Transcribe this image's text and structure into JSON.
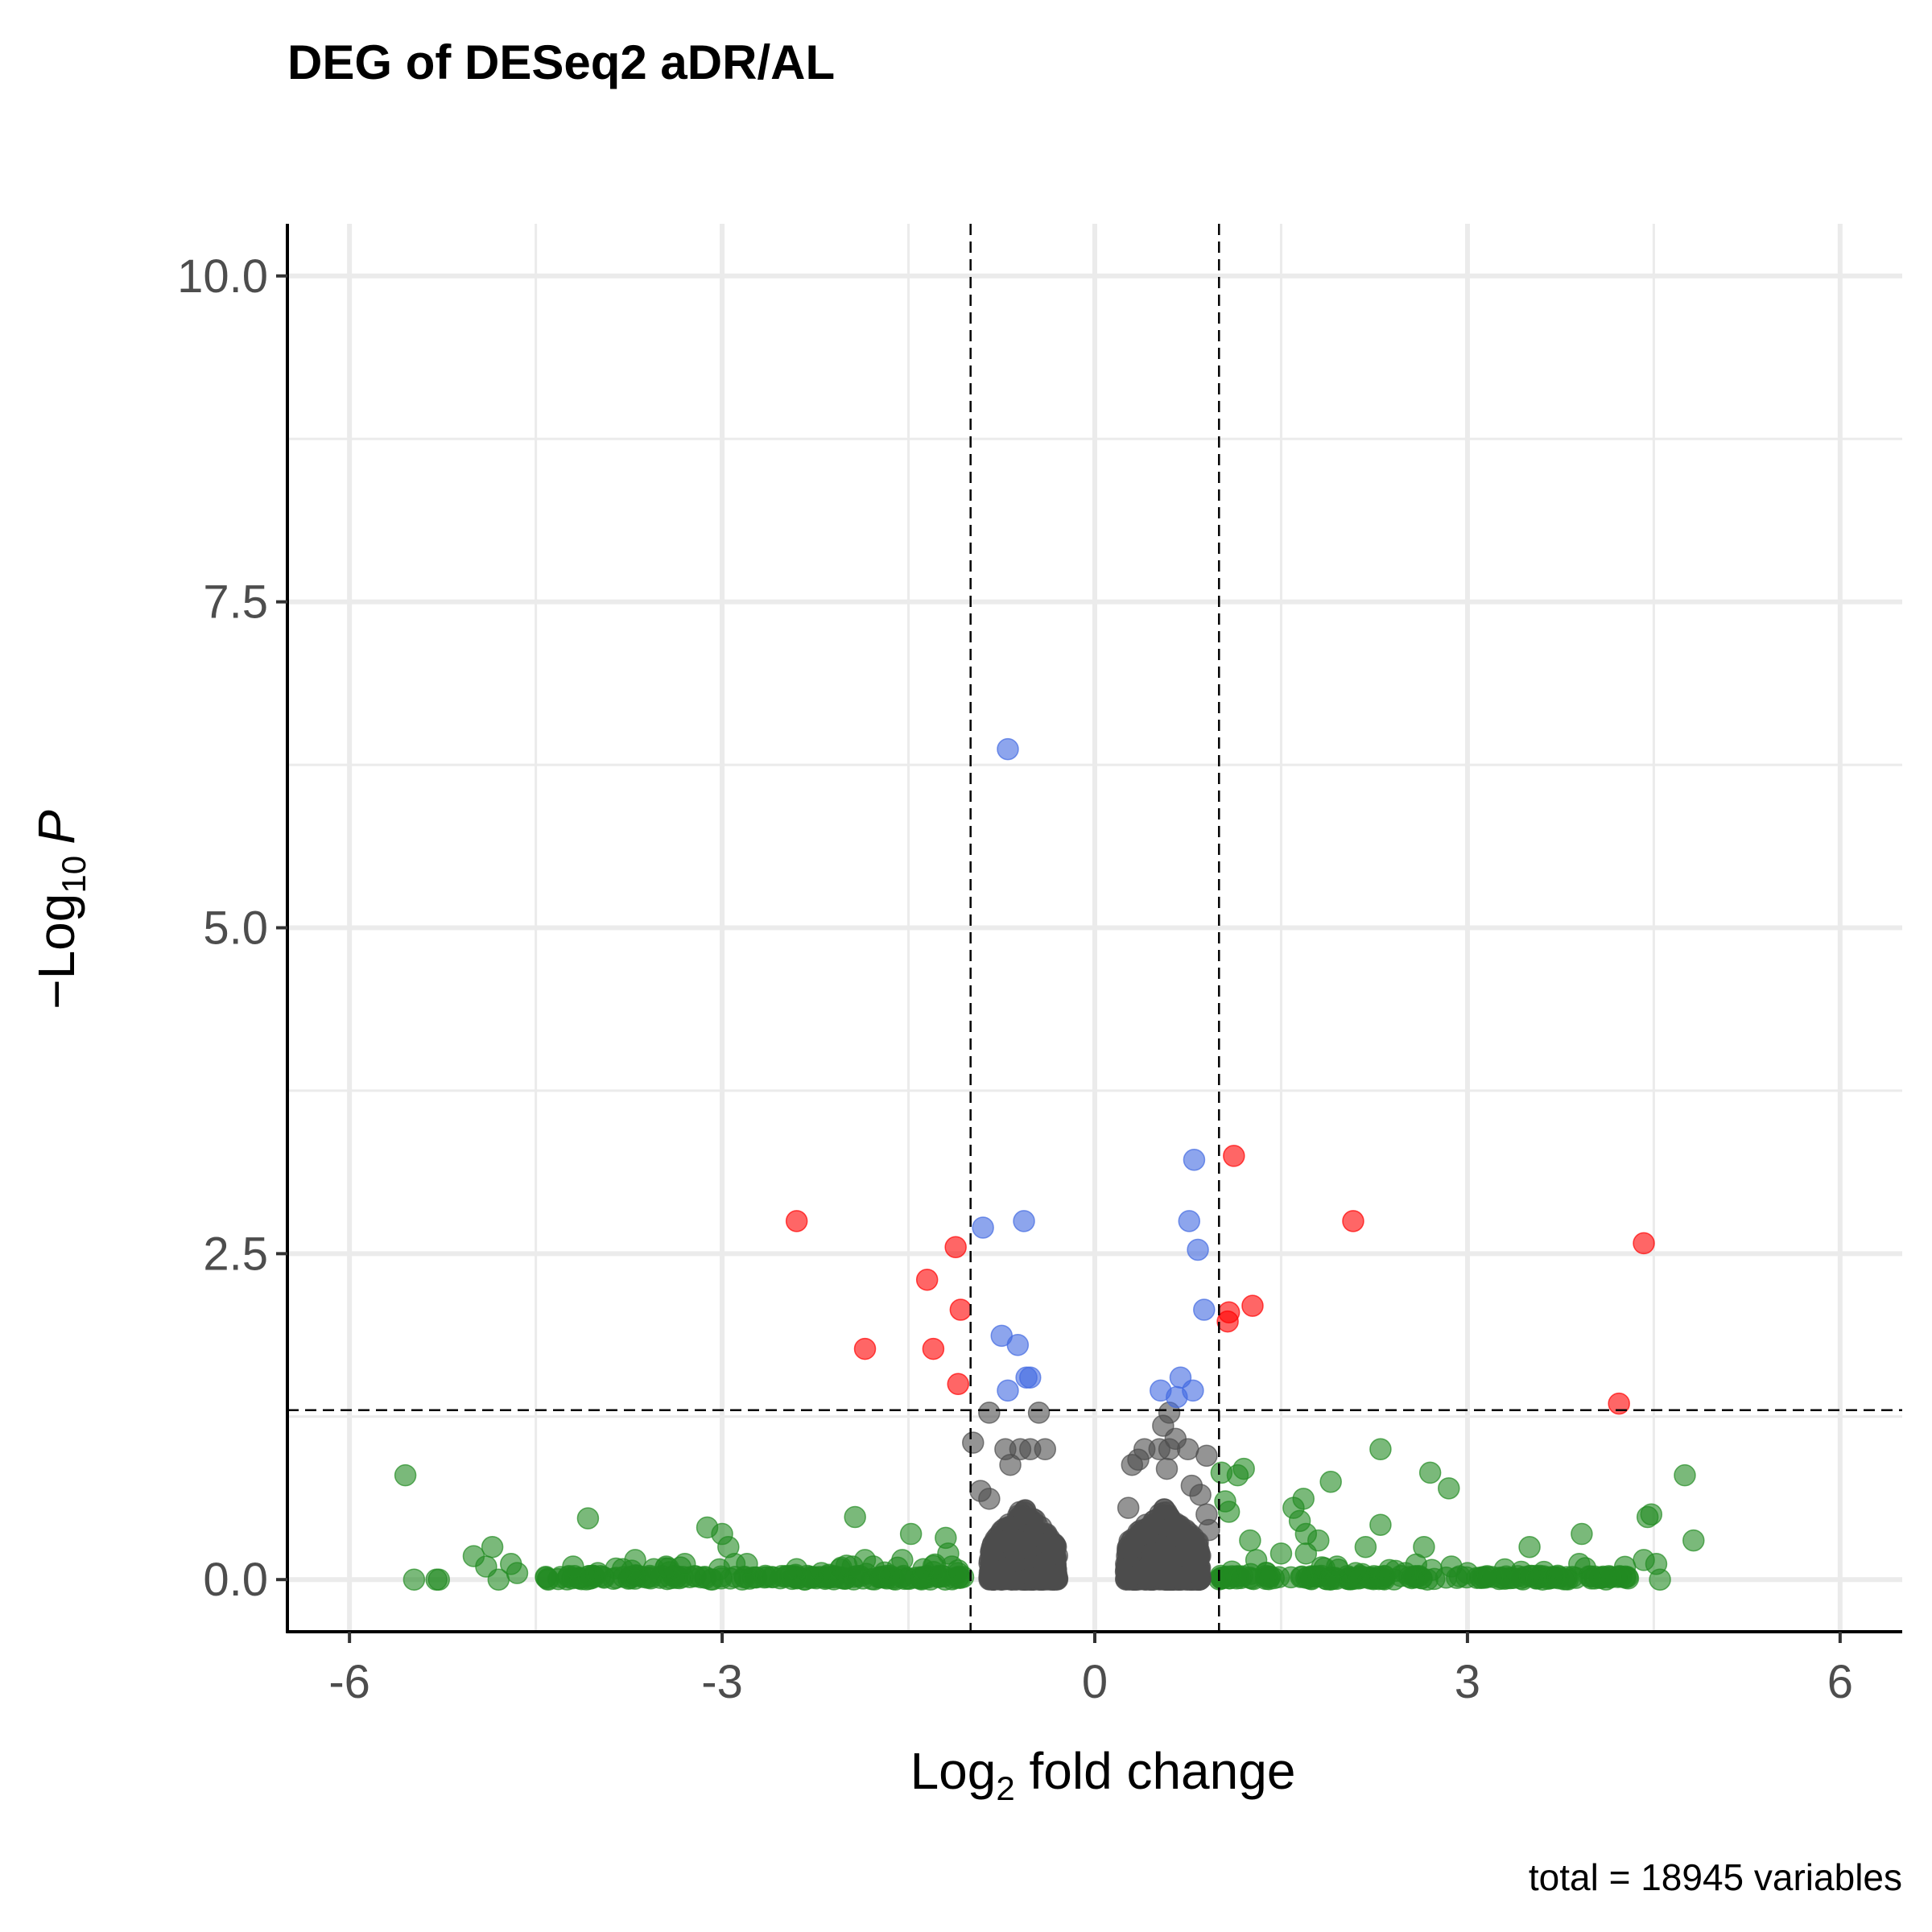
{
  "chart_data": {
    "type": "scatter",
    "title": "DEG of DESeq2 aDR/AL",
    "xlabel": {
      "base": "Log",
      "sub": "2",
      "rest": " fold change"
    },
    "ylabel": {
      "prefix": "−Log",
      "sub": "10",
      "italic": "P"
    },
    "caption": "total = 18945 variables",
    "xlim": [
      -6.5,
      6.5
    ],
    "ylim": [
      -0.4,
      10.4
    ],
    "x_ticks": [
      -6,
      -3,
      0,
      3,
      6
    ],
    "x_tick_labels": [
      "-6",
      "-3",
      "0",
      "3",
      "6"
    ],
    "y_ticks": [
      0,
      2.5,
      5,
      7.5,
      10
    ],
    "y_tick_labels": [
      "0.0",
      "2.5",
      "5.0",
      "7.5",
      "10.0"
    ],
    "grid": true,
    "thresholds": {
      "log2fc": [
        -1,
        1
      ],
      "neg_log10_p": 1.3
    },
    "colors": {
      "ns": "#4d4d4d",
      "log2fc": "#228b22",
      "p": "#4169e1",
      "p_and_log2fc": "#ff0000"
    },
    "series": [
      {
        "key": "p_and_log2fc",
        "color": "#ff0000",
        "points": [
          [
            -2.4,
            2.75
          ],
          [
            -1.12,
            2.55
          ],
          [
            -1.35,
            2.3
          ],
          [
            -1.08,
            2.07
          ],
          [
            -1.85,
            1.77
          ],
          [
            -1.3,
            1.77
          ],
          [
            -1.1,
            1.5
          ],
          [
            1.12,
            3.25
          ],
          [
            1.08,
            2.05
          ],
          [
            1.07,
            1.98
          ],
          [
            1.27,
            2.1
          ],
          [
            2.08,
            2.75
          ],
          [
            4.42,
            2.58
          ],
          [
            4.22,
            1.35
          ]
        ]
      },
      {
        "key": "p",
        "color": "#4169e1",
        "points": [
          [
            -0.7,
            6.37
          ],
          [
            -0.9,
            2.7
          ],
          [
            -0.57,
            2.75
          ],
          [
            -0.75,
            1.87
          ],
          [
            -0.62,
            1.8
          ],
          [
            -0.52,
            1.55
          ],
          [
            -0.55,
            1.55
          ],
          [
            -0.7,
            1.45
          ],
          [
            0.8,
            3.22
          ],
          [
            0.76,
            2.75
          ],
          [
            0.83,
            2.53
          ],
          [
            0.88,
            2.07
          ],
          [
            0.69,
            1.55
          ],
          [
            0.53,
            1.45
          ],
          [
            0.79,
            1.45
          ],
          [
            0.66,
            1.4
          ]
        ]
      },
      {
        "key": "log2fc",
        "color": "#228b22",
        "points": [
          [
            -5.55,
            0.8
          ],
          [
            -5.48,
            0
          ],
          [
            -5.3,
            0
          ],
          [
            -5.28,
            0
          ],
          [
            -5.0,
            0.18
          ],
          [
            -4.85,
            0.25
          ],
          [
            -4.9,
            0.1
          ],
          [
            -4.8,
            0
          ],
          [
            -4.7,
            0.12
          ],
          [
            -4.65,
            0.05
          ],
          [
            -4.4,
            0
          ],
          [
            -4.3,
            0.02
          ],
          [
            -4.2,
            0.1
          ],
          [
            -4.08,
            0.47
          ],
          [
            -4.0,
            0.05
          ],
          [
            -3.8,
            0.08
          ],
          [
            -3.7,
            0.15
          ],
          [
            -3.55,
            0.08
          ],
          [
            -3.45,
            0.1
          ],
          [
            -3.3,
            0.12
          ],
          [
            -3.12,
            0.4
          ],
          [
            -3.0,
            0.35
          ],
          [
            -2.95,
            0.25
          ],
          [
            -2.9,
            0.12
          ],
          [
            -2.8,
            0.12
          ],
          [
            -2.6,
            0.02
          ],
          [
            -2.4,
            0.08
          ],
          [
            -2.2,
            0.05
          ],
          [
            -2.05,
            0.08
          ],
          [
            -1.95,
            0.1
          ],
          [
            -1.93,
            0.48
          ],
          [
            -1.85,
            0.15
          ],
          [
            -1.65,
            0.03
          ],
          [
            -1.55,
            0.15
          ],
          [
            -1.48,
            0.35
          ],
          [
            -1.38,
            0.08
          ],
          [
            -1.2,
            0.32
          ],
          [
            -1.18,
            0.2
          ],
          [
            -1.15,
            0.1
          ],
          [
            -1.1,
            0.05
          ],
          [
            1.02,
            0.82
          ],
          [
            1.05,
            0.6
          ],
          [
            1.08,
            0.52
          ],
          [
            1.15,
            0.8
          ],
          [
            1.2,
            0.85
          ],
          [
            1.25,
            0.3
          ],
          [
            1.3,
            0.15
          ],
          [
            1.38,
            0.05
          ],
          [
            1.5,
            0.2
          ],
          [
            1.6,
            0.55
          ],
          [
            1.65,
            0.45
          ],
          [
            1.68,
            0.62
          ],
          [
            1.7,
            0.35
          ],
          [
            1.7,
            0.2
          ],
          [
            1.8,
            0.3
          ],
          [
            1.9,
            0.75
          ],
          [
            1.95,
            0.1
          ],
          [
            2.1,
            0.05
          ],
          [
            2.18,
            0.25
          ],
          [
            2.3,
            0.42
          ],
          [
            2.3,
            1.0
          ],
          [
            2.5,
            0.05
          ],
          [
            2.65,
            0.25
          ],
          [
            2.7,
            0.82
          ],
          [
            2.85,
            0.7
          ],
          [
            3.0,
            0.05
          ],
          [
            3.2,
            0.02
          ],
          [
            3.5,
            0.25
          ],
          [
            3.7,
            0.02
          ],
          [
            3.9,
            0.12
          ],
          [
            3.92,
            0.35
          ],
          [
            4.15,
            0.02
          ],
          [
            4.42,
            0.15
          ],
          [
            4.45,
            0.48
          ],
          [
            4.48,
            0.5
          ],
          [
            4.52,
            0.12
          ],
          [
            4.55,
            0.0
          ],
          [
            4.75,
            0.8
          ],
          [
            4.82,
            0.3
          ]
        ],
        "baseline_ranges": [
          [
            -4.45,
            -1.0
          ],
          [
            1.0,
            4.3
          ]
        ],
        "baseline_count": 340
      },
      {
        "key": "ns",
        "color": "#4d4d4d",
        "points": [
          [
            -0.98,
            1.05
          ],
          [
            -0.85,
            1.28
          ],
          [
            -0.45,
            1.28
          ],
          [
            -0.72,
            1.0
          ],
          [
            -0.6,
            1.0
          ],
          [
            -0.52,
            1.0
          ],
          [
            -0.4,
            1.0
          ],
          [
            -0.68,
            0.88
          ],
          [
            -0.92,
            0.68
          ],
          [
            -0.85,
            0.62
          ],
          [
            0.6,
            1.0
          ],
          [
            0.52,
            1.0
          ],
          [
            0.4,
            1.0
          ],
          [
            0.75,
            1.0
          ],
          [
            0.65,
            1.08
          ],
          [
            0.6,
            1.28
          ],
          [
            0.55,
            1.18
          ],
          [
            0.9,
            0.95
          ],
          [
            0.78,
            0.72
          ],
          [
            0.85,
            0.65
          ],
          [
            0.9,
            0.5
          ],
          [
            0.92,
            0.38
          ],
          [
            0.3,
            0.88
          ],
          [
            0.35,
            0.92
          ],
          [
            0.27,
            0.55
          ],
          [
            0.58,
            0.85
          ]
        ],
        "clusters": [
          [
            -0.85,
            -0.3
          ],
          [
            0.25,
            0.85
          ]
        ],
        "cluster_count": 1400
      }
    ]
  }
}
